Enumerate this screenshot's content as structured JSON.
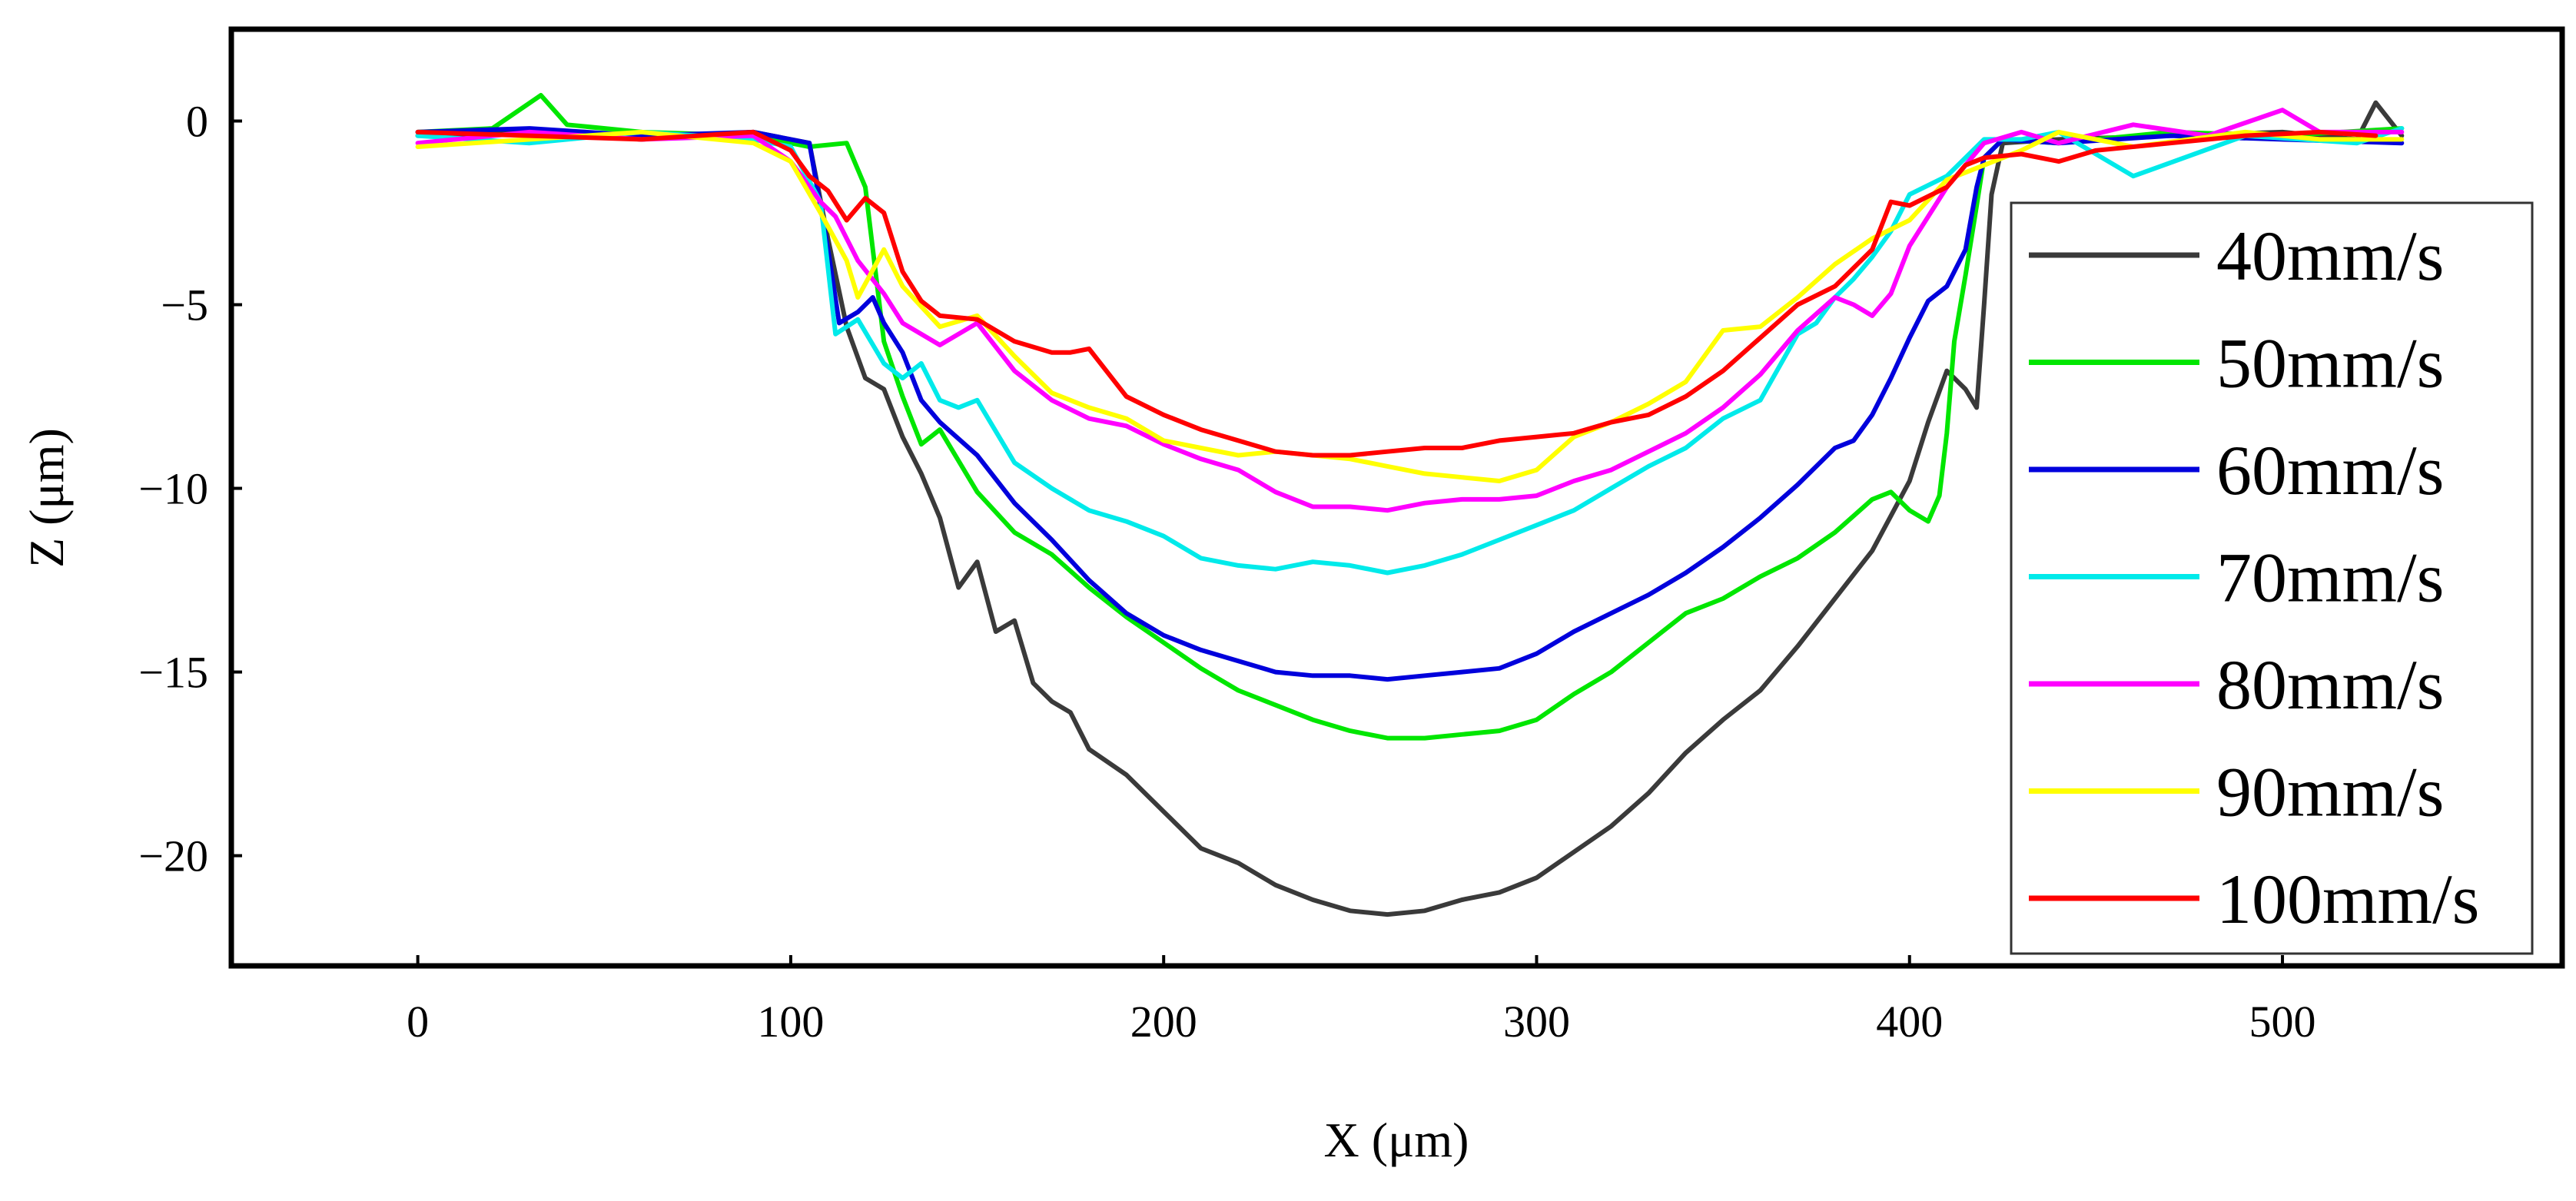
{
  "chart_data": {
    "type": "line",
    "title": "",
    "xlabel": "X (μm)",
    "ylabel": "Z (μm)",
    "xlim": [
      -50,
      575
    ],
    "ylim": [
      -23,
      2.5
    ],
    "xticks": [
      0,
      100,
      200,
      300,
      400,
      500
    ],
    "yticks": [
      0,
      -5,
      -10,
      -15,
      -20
    ],
    "xtick_labels": [
      "0",
      "100",
      "200",
      "300",
      "400",
      "500"
    ],
    "ytick_labels": [
      "0",
      "−5",
      "−10",
      "−15",
      "−20"
    ],
    "grid": false,
    "legend_position": "right",
    "series": [
      {
        "name": "40mm/s",
        "color": "#3a3a3a",
        "x": [
          0,
          30,
          60,
          90,
          105,
          110,
          115,
          120,
          125,
          130,
          135,
          140,
          145,
          150,
          155,
          160,
          165,
          170,
          175,
          180,
          190,
          200,
          210,
          220,
          230,
          240,
          250,
          260,
          270,
          280,
          290,
          300,
          310,
          320,
          330,
          340,
          350,
          360,
          370,
          380,
          390,
          400,
          405,
          410,
          415,
          418,
          420,
          422,
          425,
          440,
          470,
          500,
          520,
          525,
          532
        ],
        "values": [
          -0.4,
          -0.3,
          -0.5,
          -0.3,
          -0.6,
          -3.2,
          -5.6,
          -7.0,
          -7.3,
          -8.6,
          -9.6,
          -10.8,
          -12.7,
          -12.0,
          -13.9,
          -13.6,
          -15.3,
          -15.8,
          -16.1,
          -17.1,
          -17.8,
          -18.8,
          -19.8,
          -20.2,
          -20.8,
          -21.2,
          -21.5,
          -21.6,
          -21.5,
          -21.2,
          -21.0,
          -20.6,
          -19.9,
          -19.2,
          -18.3,
          -17.2,
          -16.3,
          -15.5,
          -14.3,
          -13.0,
          -11.7,
          -9.8,
          -8.2,
          -6.8,
          -7.3,
          -7.8,
          -5.0,
          -2.0,
          -0.6,
          -0.5,
          -0.4,
          -0.3,
          -0.5,
          0.5,
          -0.4
        ]
      },
      {
        "name": "50mm/s",
        "color": "#00e600",
        "x": [
          0,
          20,
          33,
          40,
          60,
          90,
          105,
          115,
          120,
          125,
          130,
          135,
          140,
          150,
          160,
          170,
          180,
          190,
          200,
          210,
          220,
          230,
          240,
          250,
          260,
          270,
          280,
          290,
          300,
          310,
          320,
          330,
          340,
          350,
          360,
          370,
          380,
          390,
          395,
          400,
          405,
          408,
          410,
          412,
          415,
          418,
          420,
          425,
          440,
          470,
          500,
          532
        ],
        "values": [
          -0.3,
          -0.2,
          0.7,
          -0.1,
          -0.3,
          -0.4,
          -0.7,
          -0.6,
          -1.8,
          -6.0,
          -7.5,
          -8.8,
          -8.4,
          -10.1,
          -11.2,
          -11.8,
          -12.7,
          -13.5,
          -14.2,
          -14.9,
          -15.5,
          -15.9,
          -16.3,
          -16.6,
          -16.8,
          -16.8,
          -16.7,
          -16.6,
          -16.3,
          -15.6,
          -15.0,
          -14.2,
          -13.4,
          -13.0,
          -12.4,
          -11.9,
          -11.2,
          -10.3,
          -10.1,
          -10.6,
          -10.9,
          -10.2,
          -8.5,
          -6.0,
          -4.2,
          -2.3,
          -1.0,
          -0.5,
          -0.6,
          -0.3,
          -0.4,
          -0.2
        ]
      },
      {
        "name": "60mm/s",
        "color": "#0000dc",
        "x": [
          0,
          30,
          60,
          90,
          105,
          110,
          113,
          118,
          122,
          125,
          130,
          135,
          140,
          150,
          160,
          170,
          180,
          190,
          200,
          210,
          220,
          230,
          240,
          250,
          260,
          270,
          280,
          290,
          300,
          310,
          320,
          330,
          340,
          350,
          360,
          370,
          380,
          385,
          390,
          395,
          400,
          405,
          410,
          415,
          418,
          420,
          425,
          440,
          470,
          500,
          532
        ],
        "values": [
          -0.3,
          -0.2,
          -0.4,
          -0.3,
          -0.6,
          -3.5,
          -5.5,
          -5.2,
          -4.8,
          -5.5,
          -6.3,
          -7.6,
          -8.2,
          -9.1,
          -10.4,
          -11.4,
          -12.5,
          -13.4,
          -14.0,
          -14.4,
          -14.7,
          -15.0,
          -15.1,
          -15.1,
          -15.2,
          -15.1,
          -15.0,
          -14.9,
          -14.5,
          -13.9,
          -13.4,
          -12.9,
          -12.3,
          -11.6,
          -10.8,
          -9.9,
          -8.9,
          -8.7,
          -8.0,
          -7.0,
          -5.9,
          -4.9,
          -4.5,
          -3.5,
          -1.8,
          -1.0,
          -0.5,
          -0.6,
          -0.4,
          -0.5,
          -0.6
        ]
      },
      {
        "name": "70mm/s",
        "color": "#00eaea",
        "x": [
          0,
          30,
          60,
          90,
          100,
          108,
          112,
          118,
          125,
          130,
          135,
          140,
          145,
          150,
          160,
          170,
          180,
          190,
          200,
          210,
          220,
          230,
          240,
          250,
          260,
          270,
          280,
          290,
          300,
          310,
          320,
          330,
          340,
          350,
          360,
          370,
          375,
          380,
          385,
          390,
          395,
          400,
          410,
          415,
          420,
          430,
          440,
          460,
          490,
          520,
          532
        ],
        "values": [
          -0.4,
          -0.6,
          -0.3,
          -0.5,
          -0.7,
          -2.2,
          -5.8,
          -5.4,
          -6.6,
          -7.0,
          -6.6,
          -7.6,
          -7.8,
          -7.6,
          -9.3,
          -10.0,
          -10.6,
          -10.9,
          -11.3,
          -11.9,
          -12.1,
          -12.2,
          -12.0,
          -12.1,
          -12.3,
          -12.1,
          -11.8,
          -11.4,
          -11.0,
          -10.6,
          -10.0,
          -9.4,
          -8.9,
          -8.1,
          -7.6,
          -5.8,
          -5.5,
          -4.8,
          -4.3,
          -3.7,
          -3.0,
          -2.0,
          -1.5,
          -1.0,
          -0.5,
          -0.5,
          -0.3,
          -1.5,
          -0.4,
          -0.6,
          -0.2
        ]
      },
      {
        "name": "80mm/s",
        "color": "#ff00ff",
        "x": [
          0,
          30,
          60,
          90,
          100,
          108,
          112,
          118,
          125,
          130,
          140,
          150,
          160,
          170,
          180,
          190,
          200,
          210,
          220,
          230,
          240,
          250,
          260,
          270,
          280,
          290,
          300,
          310,
          320,
          330,
          340,
          350,
          360,
          370,
          380,
          385,
          390,
          395,
          400,
          410,
          420,
          430,
          440,
          460,
          480,
          500,
          510,
          532
        ],
        "values": [
          -0.6,
          -0.3,
          -0.5,
          -0.4,
          -1.1,
          -2.2,
          -2.6,
          -3.8,
          -4.7,
          -5.5,
          -6.1,
          -5.5,
          -6.8,
          -7.6,
          -8.1,
          -8.3,
          -8.8,
          -9.2,
          -9.5,
          -10.1,
          -10.5,
          -10.5,
          -10.6,
          -10.4,
          -10.3,
          -10.3,
          -10.2,
          -9.8,
          -9.5,
          -9.0,
          -8.5,
          -7.8,
          -6.9,
          -5.7,
          -4.8,
          -5.0,
          -5.3,
          -4.7,
          -3.4,
          -1.8,
          -0.6,
          -0.3,
          -0.6,
          -0.1,
          -0.4,
          0.3,
          -0.3,
          -0.3
        ]
      },
      {
        "name": "90mm/s",
        "color": "#ffff00",
        "x": [
          0,
          30,
          60,
          90,
          100,
          108,
          115,
          118,
          125,
          130,
          140,
          150,
          160,
          170,
          180,
          190,
          200,
          210,
          220,
          230,
          240,
          250,
          260,
          270,
          280,
          290,
          300,
          310,
          320,
          330,
          340,
          350,
          360,
          370,
          380,
          390,
          400,
          410,
          420,
          430,
          440,
          460,
          490,
          510,
          532
        ],
        "values": [
          -0.7,
          -0.5,
          -0.3,
          -0.6,
          -1.1,
          -2.5,
          -3.8,
          -4.8,
          -3.5,
          -4.5,
          -5.6,
          -5.3,
          -6.4,
          -7.4,
          -7.8,
          -8.1,
          -8.7,
          -8.9,
          -9.1,
          -9.0,
          -9.1,
          -9.2,
          -9.4,
          -9.6,
          -9.7,
          -9.8,
          -9.5,
          -8.6,
          -8.2,
          -7.7,
          -7.1,
          -5.7,
          -5.6,
          -4.8,
          -3.9,
          -3.2,
          -2.7,
          -1.6,
          -1.2,
          -0.8,
          -0.3,
          -0.7,
          -0.3,
          -0.5,
          -0.5
        ]
      },
      {
        "name": "100mm/s",
        "color": "#ff0000",
        "x": [
          0,
          30,
          60,
          90,
          100,
          105,
          110,
          115,
          120,
          125,
          130,
          135,
          140,
          150,
          160,
          170,
          175,
          180,
          190,
          200,
          210,
          220,
          230,
          240,
          250,
          260,
          270,
          280,
          290,
          300,
          310,
          320,
          330,
          340,
          350,
          360,
          370,
          380,
          390,
          395,
          400,
          410,
          415,
          420,
          430,
          440,
          450,
          470,
          490,
          510,
          525
        ],
        "values": [
          -0.3,
          -0.4,
          -0.5,
          -0.3,
          -0.8,
          -1.5,
          -1.9,
          -2.7,
          -2.1,
          -2.5,
          -4.1,
          -4.9,
          -5.3,
          -5.4,
          -6.0,
          -6.3,
          -6.3,
          -6.2,
          -7.5,
          -8.0,
          -8.4,
          -8.7,
          -9.0,
          -9.1,
          -9.1,
          -9.0,
          -8.9,
          -8.9,
          -8.7,
          -8.6,
          -8.5,
          -8.2,
          -8.0,
          -7.5,
          -6.8,
          -5.9,
          -5.0,
          -4.5,
          -3.5,
          -2.2,
          -2.3,
          -1.8,
          -1.2,
          -1.0,
          -0.9,
          -1.1,
          -0.8,
          -0.6,
          -0.4,
          -0.3,
          -0.4
        ]
      }
    ]
  }
}
